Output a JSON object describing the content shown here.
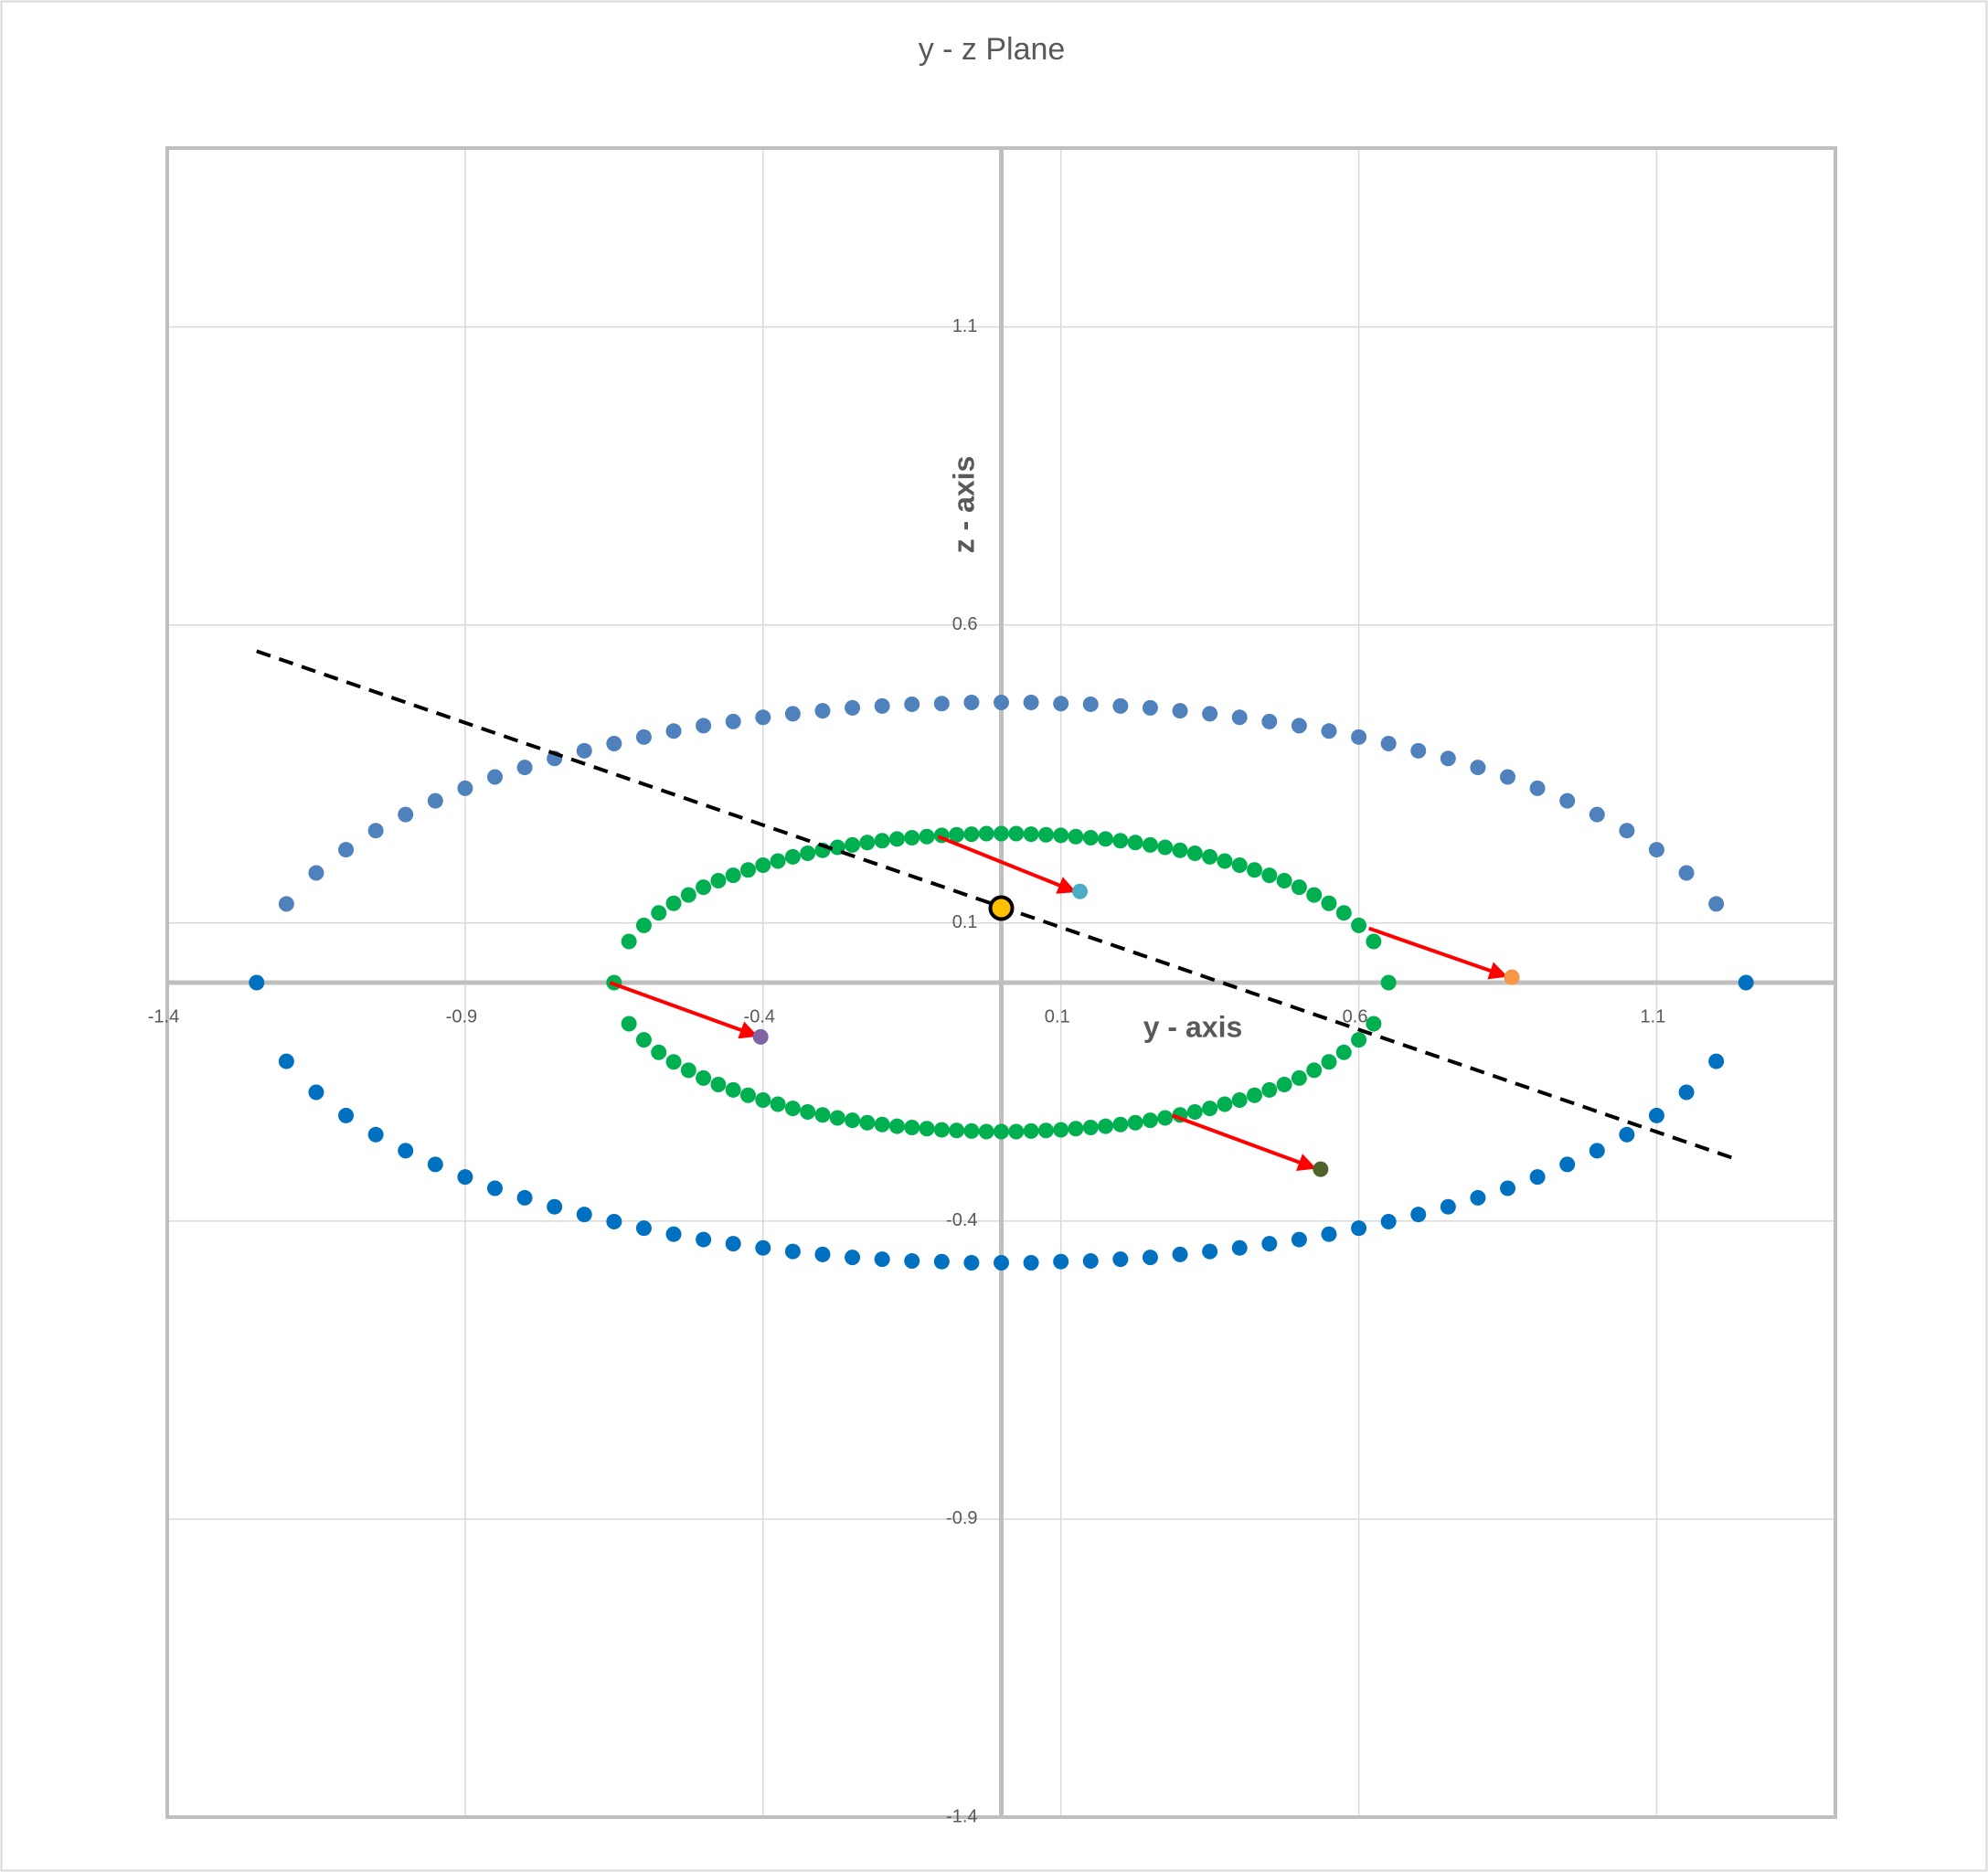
{
  "chart_data": {
    "type": "scatter",
    "title": "y - z Plane",
    "x_label": "y - axis",
    "y_label": "z - axis",
    "xlim": [
      -1.4,
      1.4
    ],
    "ylim": [
      -1.4,
      1.4
    ],
    "xticks": [
      -1.4,
      -0.9,
      -0.4,
      0.1,
      0.6,
      1.1
    ],
    "yticks": [
      -1.4,
      -0.9,
      -0.4,
      0.1,
      0.6,
      1.1
    ],
    "grid": true,
    "series": [
      {
        "color": "#4f81bd",
        "marker": "circle",
        "x": [
          -1.2,
          -1.15,
          -1.1,
          -1.05,
          -1,
          -0.95,
          -0.9,
          -0.85,
          -0.8,
          -0.75,
          -0.7,
          -0.65,
          -0.6,
          -0.55,
          -0.5,
          -0.45,
          -0.4,
          -0.35,
          -0.3,
          -0.25,
          -0.2,
          -0.15,
          -0.1,
          -0.05,
          0,
          0.05,
          0.1,
          0.15,
          0.2,
          0.25,
          0.3,
          0.35,
          0.4,
          0.45,
          0.5,
          0.55,
          0.6,
          0.65,
          0.7,
          0.75,
          0.8,
          0.85,
          0.9,
          0.95,
          1,
          1.05,
          1.1,
          1.15,
          1.2
        ],
        "values": [
          0.132,
          0.184,
          0.223,
          0.255,
          0.282,
          0.305,
          0.326,
          0.345,
          0.361,
          0.376,
          0.389,
          0.401,
          0.412,
          0.422,
          0.431,
          0.438,
          0.445,
          0.451,
          0.456,
          0.461,
          0.464,
          0.467,
          0.468,
          0.47,
          0.47,
          0.47,
          0.468,
          0.467,
          0.464,
          0.461,
          0.456,
          0.451,
          0.445,
          0.438,
          0.431,
          0.422,
          0.412,
          0.401,
          0.389,
          0.376,
          0.361,
          0.345,
          0.326,
          0.305,
          0.282,
          0.255,
          0.223,
          0.184,
          0.132
        ]
      },
      {
        "color": "#0070c0",
        "marker": "circle",
        "x": [
          -1.25,
          -1.2,
          -1.15,
          -1.1,
          -1.05,
          -1,
          -0.95,
          -0.9,
          -0.85,
          -0.8,
          -0.75,
          -0.7,
          -0.65,
          -0.6,
          -0.55,
          -0.5,
          -0.45,
          -0.4,
          -0.35,
          -0.3,
          -0.25,
          -0.2,
          -0.15,
          -0.1,
          -0.05,
          0,
          0.05,
          0.1,
          0.15,
          0.2,
          0.25,
          0.3,
          0.35,
          0.4,
          0.45,
          0.5,
          0.55,
          0.6,
          0.65,
          0.7,
          0.75,
          0.8,
          0.85,
          0.9,
          0.95,
          1,
          1.05,
          1.1,
          1.15,
          1.2,
          1.25
        ],
        "values": [
          0,
          -0.132,
          -0.184,
          -0.223,
          -0.255,
          -0.282,
          -0.305,
          -0.326,
          -0.345,
          -0.361,
          -0.376,
          -0.389,
          -0.401,
          -0.412,
          -0.422,
          -0.431,
          -0.438,
          -0.445,
          -0.451,
          -0.456,
          -0.461,
          -0.464,
          -0.467,
          -0.468,
          -0.47,
          -0.47,
          -0.47,
          -0.468,
          -0.467,
          -0.464,
          -0.461,
          -0.456,
          -0.451,
          -0.445,
          -0.438,
          -0.431,
          -0.422,
          -0.412,
          -0.401,
          -0.389,
          -0.376,
          -0.361,
          -0.345,
          -0.326,
          -0.305,
          -0.282,
          -0.255,
          -0.223,
          -0.184,
          -0.132,
          0
        ]
      },
      {
        "color": "#00b050",
        "marker": "circle",
        "x": [
          -0.65,
          -0.625,
          -0.6,
          -0.575,
          -0.55,
          -0.525,
          -0.5,
          -0.475,
          -0.45,
          -0.425,
          -0.4,
          -0.375,
          -0.35,
          -0.325,
          -0.3,
          -0.275,
          -0.25,
          -0.225,
          -0.2,
          -0.175,
          -0.15,
          -0.125,
          -0.1,
          -0.075,
          -0.05,
          -0.025,
          0,
          0.025,
          0.05,
          0.075,
          0.1,
          0.125,
          0.15,
          0.175,
          0.2,
          0.225,
          0.25,
          0.275,
          0.3,
          0.325,
          0.35,
          0.375,
          0.4,
          0.425,
          0.45,
          0.475,
          0.5,
          0.525,
          0.55,
          0.575,
          0.6,
          0.625,
          0.65
        ],
        "values": [
          0,
          0.069,
          0.096,
          0.117,
          0.133,
          0.147,
          0.16,
          0.171,
          0.18,
          0.189,
          0.197,
          0.204,
          0.211,
          0.217,
          0.222,
          0.227,
          0.231,
          0.235,
          0.238,
          0.241,
          0.243,
          0.245,
          0.247,
          0.248,
          0.249,
          0.25,
          0.25,
          0.25,
          0.249,
          0.248,
          0.247,
          0.245,
          0.243,
          0.241,
          0.238,
          0.235,
          0.231,
          0.227,
          0.222,
          0.217,
          0.211,
          0.204,
          0.197,
          0.189,
          0.18,
          0.171,
          0.16,
          0.147,
          0.133,
          0.117,
          0.096,
          0.069,
          0
        ]
      },
      {
        "color": "#00b050",
        "marker": "circle",
        "x": [
          -0.625,
          -0.6,
          -0.575,
          -0.55,
          -0.525,
          -0.5,
          -0.475,
          -0.45,
          -0.425,
          -0.4,
          -0.375,
          -0.35,
          -0.325,
          -0.3,
          -0.275,
          -0.25,
          -0.225,
          -0.2,
          -0.175,
          -0.15,
          -0.125,
          -0.1,
          -0.075,
          -0.05,
          -0.025,
          0,
          0.025,
          0.05,
          0.075,
          0.1,
          0.125,
          0.15,
          0.175,
          0.2,
          0.225,
          0.25,
          0.275,
          0.3,
          0.325,
          0.35,
          0.375,
          0.4,
          0.425,
          0.45,
          0.475,
          0.5,
          0.525,
          0.55,
          0.575,
          0.6,
          0.625
        ],
        "values": [
          -0.069,
          -0.096,
          -0.117,
          -0.133,
          -0.147,
          -0.16,
          -0.171,
          -0.18,
          -0.189,
          -0.197,
          -0.204,
          -0.211,
          -0.217,
          -0.222,
          -0.227,
          -0.231,
          -0.235,
          -0.238,
          -0.241,
          -0.243,
          -0.245,
          -0.247,
          -0.248,
          -0.249,
          -0.25,
          -0.25,
          -0.25,
          -0.249,
          -0.248,
          -0.247,
          -0.245,
          -0.243,
          -0.241,
          -0.238,
          -0.235,
          -0.231,
          -0.227,
          -0.222,
          -0.217,
          -0.211,
          -0.204,
          -0.197,
          -0.189,
          -0.18,
          -0.171,
          -0.16,
          -0.147,
          -0.133,
          -0.117,
          -0.096,
          -0.069
        ]
      },
      {
        "color": "#000000",
        "line": "dashed",
        "x": [
          -1.25,
          1.23
        ],
        "values": [
          0.556,
          -0.295
        ]
      },
      {
        "color": "#ff0000",
        "line": "arrow",
        "x": [
          -0.106,
          0.123
        ],
        "values": [
          0.245,
          0.153
        ]
      },
      {
        "color": "#ff0000",
        "line": "arrow",
        "x": [
          0.617,
          0.847
        ],
        "values": [
          0.091,
          0.011
        ]
      },
      {
        "color": "#ff0000",
        "line": "arrow",
        "x": [
          -0.657,
          -0.411
        ],
        "values": [
          0,
          -0.089
        ]
      },
      {
        "color": "#ff0000",
        "line": "arrow",
        "x": [
          0.287,
          0.526
        ],
        "values": [
          -0.223,
          -0.311
        ]
      },
      {
        "color": "#4bacc6",
        "marker": "circle",
        "x": [
          0.132
        ],
        "values": [
          0.153
        ]
      },
      {
        "color": "#f79646",
        "marker": "circle",
        "x": [
          0.857
        ],
        "values": [
          0.009
        ]
      },
      {
        "color": "#8064a2",
        "marker": "circle",
        "x": [
          -0.404
        ],
        "values": [
          -0.091
        ]
      },
      {
        "color": "#4f6228",
        "marker": "circle",
        "x": [
          0.536
        ],
        "values": [
          -0.313
        ]
      },
      {
        "color": "#ffc000",
        "marker": "circle",
        "edge_color": "#000000",
        "x": [
          0
        ],
        "values": [
          0.125
        ]
      }
    ]
  }
}
